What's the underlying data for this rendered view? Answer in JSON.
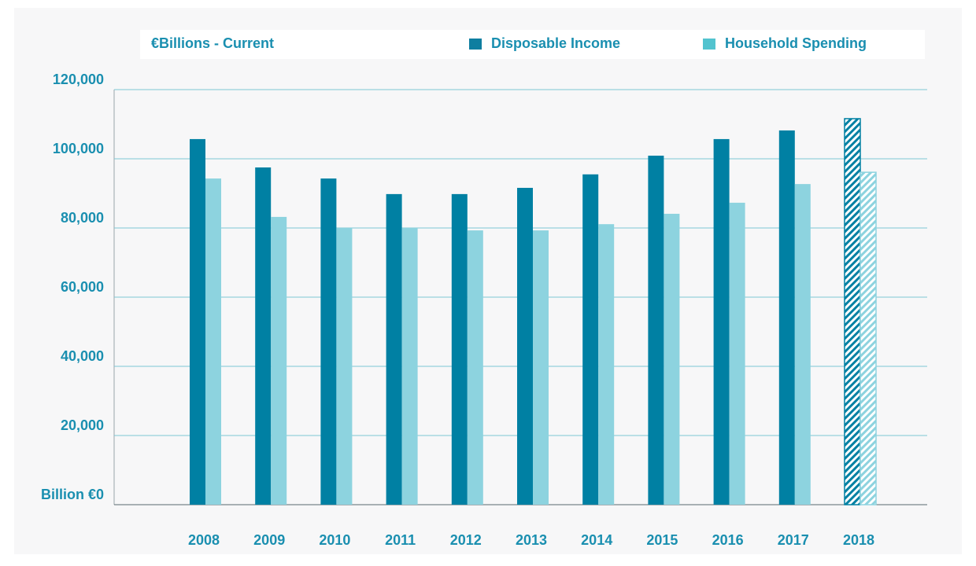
{
  "chart_data": {
    "type": "bar",
    "unit_label": "€Billions - Current",
    "categories": [
      "2008",
      "2009",
      "2010",
      "2011",
      "2012",
      "2013",
      "2014",
      "2015",
      "2016",
      "2017",
      "2018"
    ],
    "series": [
      {
        "name": "Disposable Income",
        "color": "#0080a3",
        "legend_color": "#0e7ea0",
        "values": [
          105700,
          97500,
          94300,
          89800,
          89800,
          91600,
          95500,
          100900,
          105700,
          108200,
          111600
        ]
      },
      {
        "name": "Household Spending",
        "color": "#8dd3df",
        "legend_color": "#52c3cf",
        "values": [
          94300,
          83200,
          80000,
          80000,
          79300,
          79300,
          81100,
          84100,
          87300,
          92700,
          96100
        ]
      }
    ],
    "hatched_categories": [
      "2018"
    ],
    "ylim": [
      0,
      120000
    ],
    "yticks": [
      {
        "value": 0,
        "label": "Billion €0"
      },
      {
        "value": 20000,
        "label": "20,000"
      },
      {
        "value": 40000,
        "label": "40,000"
      },
      {
        "value": 60000,
        "label": "60,000"
      },
      {
        "value": 80000,
        "label": "80,000"
      },
      {
        "value": 100000,
        "label": "100,000"
      },
      {
        "value": 120000,
        "label": "120,000"
      }
    ],
    "grid": true
  }
}
